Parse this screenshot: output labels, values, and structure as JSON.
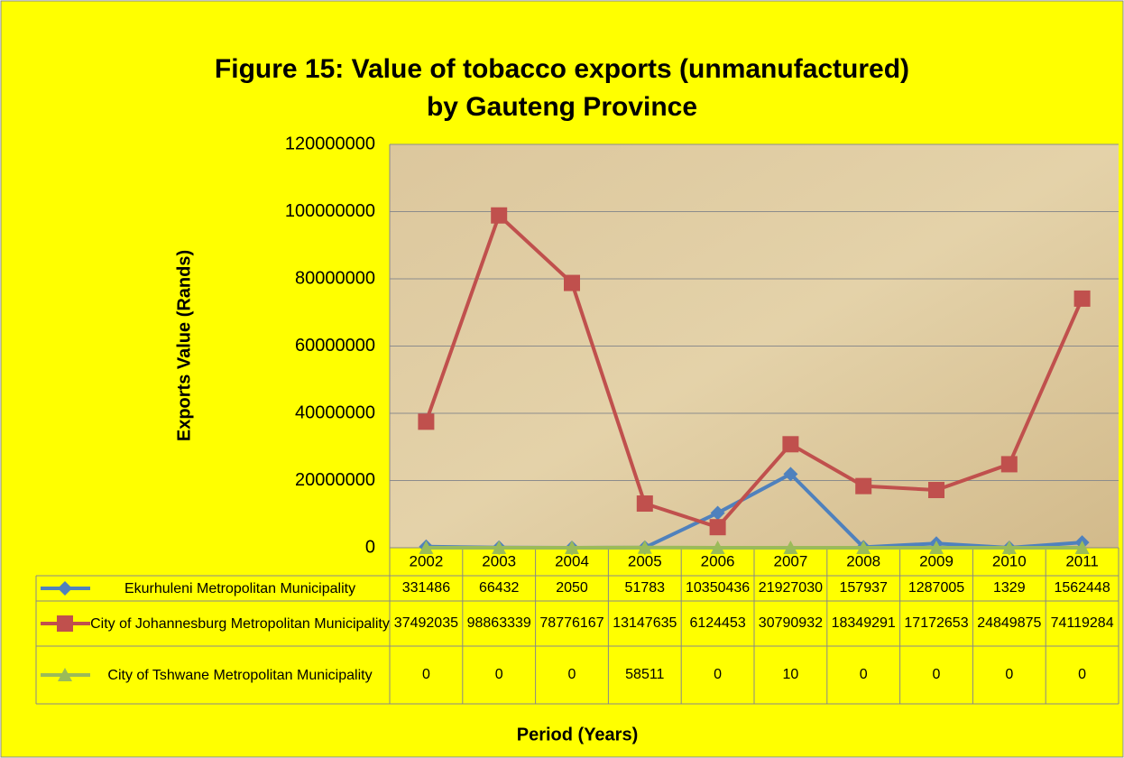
{
  "chart_data": {
    "type": "line",
    "title": "Figure 15: Value of tobacco exports (unmanufactured) by Gauteng Province",
    "y_label": "Exports Value (Rands)",
    "x_label": "Period (Years)",
    "categories": [
      "2002",
      "2003",
      "2004",
      "2005",
      "2006",
      "2007",
      "2008",
      "2009",
      "2010",
      "2011"
    ],
    "series": [
      {
        "name": "Ekurhuleni Metropolitan Municipality",
        "color": "#4f81bd",
        "marker": "diamond",
        "values": [
          331486,
          66432,
          2050,
          51783,
          10350436,
          21927030,
          157937,
          1287005,
          1329,
          1562448
        ]
      },
      {
        "name": "City of Johannesburg Metropolitan Municipality",
        "color": "#c0504d",
        "marker": "square",
        "values": [
          37492035,
          98863339,
          78776167,
          13147635,
          6124453,
          30790932,
          18349291,
          17172653,
          24849875,
          74119284
        ]
      },
      {
        "name": "City of Tshwane Metropolitan Municipality",
        "color": "#9bbb59",
        "marker": "triangle",
        "values": [
          0,
          0,
          0,
          58511,
          0,
          10,
          0,
          0,
          0,
          0
        ]
      }
    ],
    "ylim": [
      0,
      120000000
    ],
    "yticks": [
      0,
      20000000,
      40000000,
      60000000,
      80000000,
      100000000,
      120000000
    ],
    "grid": true
  }
}
